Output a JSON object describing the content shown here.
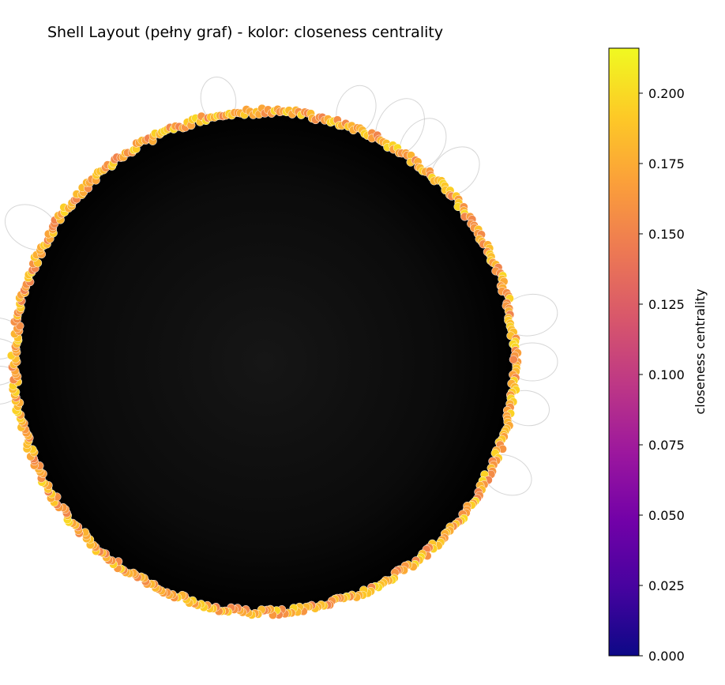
{
  "chart_data": {
    "type": "network-shell",
    "title": "Shell Layout (pełny graf) - kolor: closeness centrality",
    "layout": "shell",
    "node_color_metric": "closeness centrality",
    "node_color_range_observed": [
      0.15,
      0.2
    ],
    "edge_color": "#000000",
    "node_edge_color": "#ffffff",
    "colorbar": {
      "label": "closeness centrality",
      "colormap": "plasma",
      "range": [
        0.0,
        0.216
      ],
      "ticks": [
        0.0,
        0.025,
        0.05,
        0.075,
        0.1,
        0.125,
        0.15,
        0.175,
        0.2
      ],
      "tick_labels": [
        "0.000",
        "0.025",
        "0.050",
        "0.075",
        "0.100",
        "0.125",
        "0.150",
        "0.175",
        "0.200"
      ],
      "colors": [
        "#0d0887",
        "#46039f",
        "#7201a8",
        "#9c179e",
        "#bd3786",
        "#d8576b",
        "#ed7953",
        "#fb9f3a",
        "#fdca26",
        "#f0f921"
      ]
    }
  }
}
